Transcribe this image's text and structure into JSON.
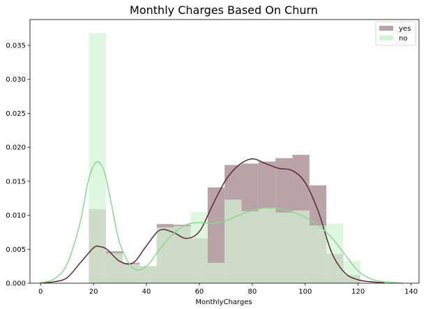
{
  "chart_data": {
    "type": "histogram-kde",
    "title": "Monthly Charges Based On Churn",
    "xlabel": "MonthlyCharges",
    "ylabel": "",
    "xlim": [
      -4,
      143
    ],
    "ylim": [
      0,
      0.0388
    ],
    "x_ticks": [
      "0",
      "20",
      "40",
      "60",
      "80",
      "100",
      "120",
      "140"
    ],
    "y_ticks": [
      "0.000",
      "0.005",
      "0.010",
      "0.015",
      "0.020",
      "0.025",
      "0.030",
      "0.035"
    ],
    "legend": {
      "position": "top-right",
      "entries": [
        "yes",
        "no"
      ]
    },
    "grid": false,
    "series": [
      {
        "name": "yes",
        "bar_color": "#b9a2a8",
        "line_color": "#5b2a31",
        "bin_edges": [
          18.25,
          24.66,
          31.07,
          37.48,
          43.89,
          50.31,
          56.72,
          63.13,
          69.54,
          75.95,
          82.36,
          88.77,
          95.19,
          101.6,
          108.01,
          114.42,
          120.83
        ],
        "bin_heights": [
          0.0109,
          0.0047,
          0.003,
          0.0025,
          0.0087,
          0.0086,
          0.0066,
          0.0141,
          0.0174,
          0.0176,
          0.0179,
          0.0184,
          0.0189,
          0.0144,
          0.0043,
          0.0012
        ],
        "kde_x": [
          0,
          5,
          10,
          15,
          20,
          22,
          25,
          30,
          35,
          40,
          45,
          50,
          55,
          60,
          65,
          70,
          75,
          80,
          85,
          90,
          95,
          100,
          105,
          110,
          115,
          120,
          125,
          130
        ],
        "kde_y": [
          5e-05,
          0.0002,
          0.0008,
          0.003,
          0.0052,
          0.0054,
          0.005,
          0.0032,
          0.003,
          0.0055,
          0.0078,
          0.0075,
          0.0066,
          0.0076,
          0.0115,
          0.0152,
          0.0174,
          0.0183,
          0.0176,
          0.0169,
          0.0166,
          0.0148,
          0.0105,
          0.0045,
          0.0015,
          0.0005,
          0.0002,
          5e-05
        ]
      },
      {
        "name": "no",
        "bar_color": "#d2f2d4",
        "line_color": "#8cd690",
        "bin_edges": [
          18.25,
          24.66,
          31.07,
          37.48,
          43.89,
          50.31,
          56.72,
          63.13,
          69.54,
          75.95,
          82.36,
          88.77,
          95.19,
          101.6,
          108.01,
          114.42,
          120.83
        ],
        "bin_heights": [
          0.0368,
          0.0044,
          0.0028,
          0.0025,
          0.0082,
          0.0084,
          0.0105,
          0.003,
          0.0123,
          0.0106,
          0.011,
          0.0104,
          0.0107,
          0.0085,
          0.0088,
          0.0033
        ],
        "kde_x": [
          0,
          5,
          10,
          15,
          18,
          21,
          24,
          27,
          30,
          35,
          40,
          45,
          50,
          55,
          60,
          65,
          70,
          75,
          80,
          85,
          90,
          95,
          100,
          105,
          110,
          115,
          120,
          125,
          130,
          137
        ],
        "kde_y": [
          8e-05,
          0.0006,
          0.0028,
          0.009,
          0.015,
          0.0178,
          0.0165,
          0.0112,
          0.0058,
          0.0022,
          0.0025,
          0.005,
          0.0072,
          0.0086,
          0.0089,
          0.0088,
          0.0092,
          0.01,
          0.0107,
          0.0111,
          0.011,
          0.0105,
          0.0097,
          0.0085,
          0.0067,
          0.0042,
          0.0018,
          0.0006,
          0.0002,
          1e-05
        ]
      }
    ]
  }
}
